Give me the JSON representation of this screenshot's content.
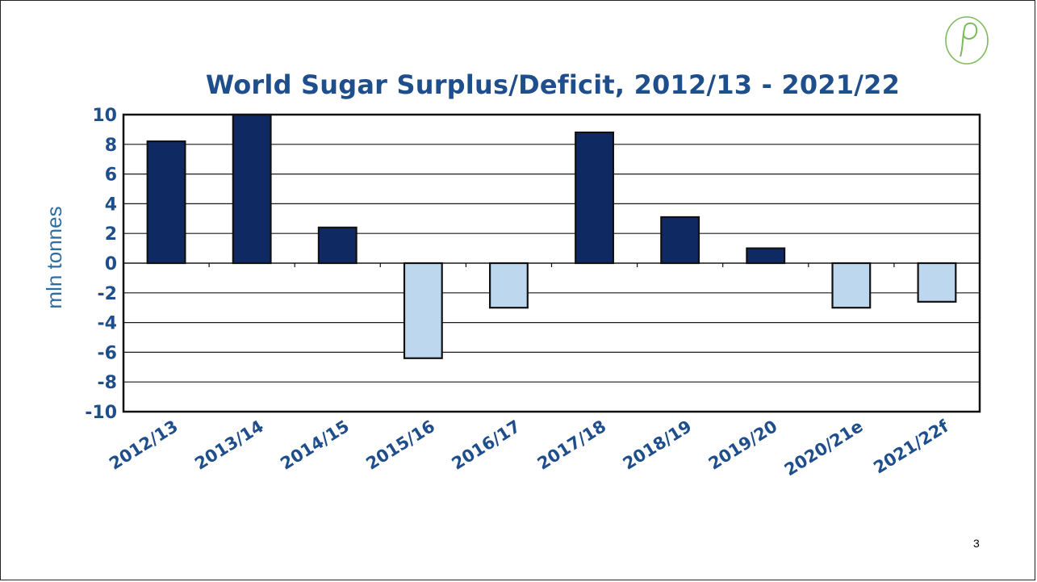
{
  "slide": {
    "page_number": "3",
    "logo_letter": "P",
    "colors": {
      "surplus_bar": "#0f2a63",
      "deficit_bar": "#bdd7ee",
      "title": "#1f4e8c",
      "tick_labels": "#1f4e8c",
      "axis_label": "#2e6da4",
      "logo": "#7dbb5a"
    }
  },
  "chart_data": {
    "type": "bar",
    "title": "World Sugar Surplus/Deficit, 2012/13 - 2021/22",
    "xlabel": "",
    "ylabel": "mln tonnes",
    "ylim": [
      -10,
      10
    ],
    "yticks": [
      10,
      8,
      6,
      4,
      2,
      0,
      -2,
      -4,
      -6,
      -8,
      -10
    ],
    "grid": true,
    "categories": [
      "2012/13",
      "2013/14",
      "2014/15",
      "2015/16",
      "2016/17",
      "2017/18",
      "2018/19",
      "2019/20",
      "2020/21e",
      "2021/22f"
    ],
    "values": [
      8.2,
      10.0,
      2.4,
      -6.4,
      -3.0,
      8.8,
      3.1,
      1.0,
      -3.0,
      -2.6
    ]
  }
}
